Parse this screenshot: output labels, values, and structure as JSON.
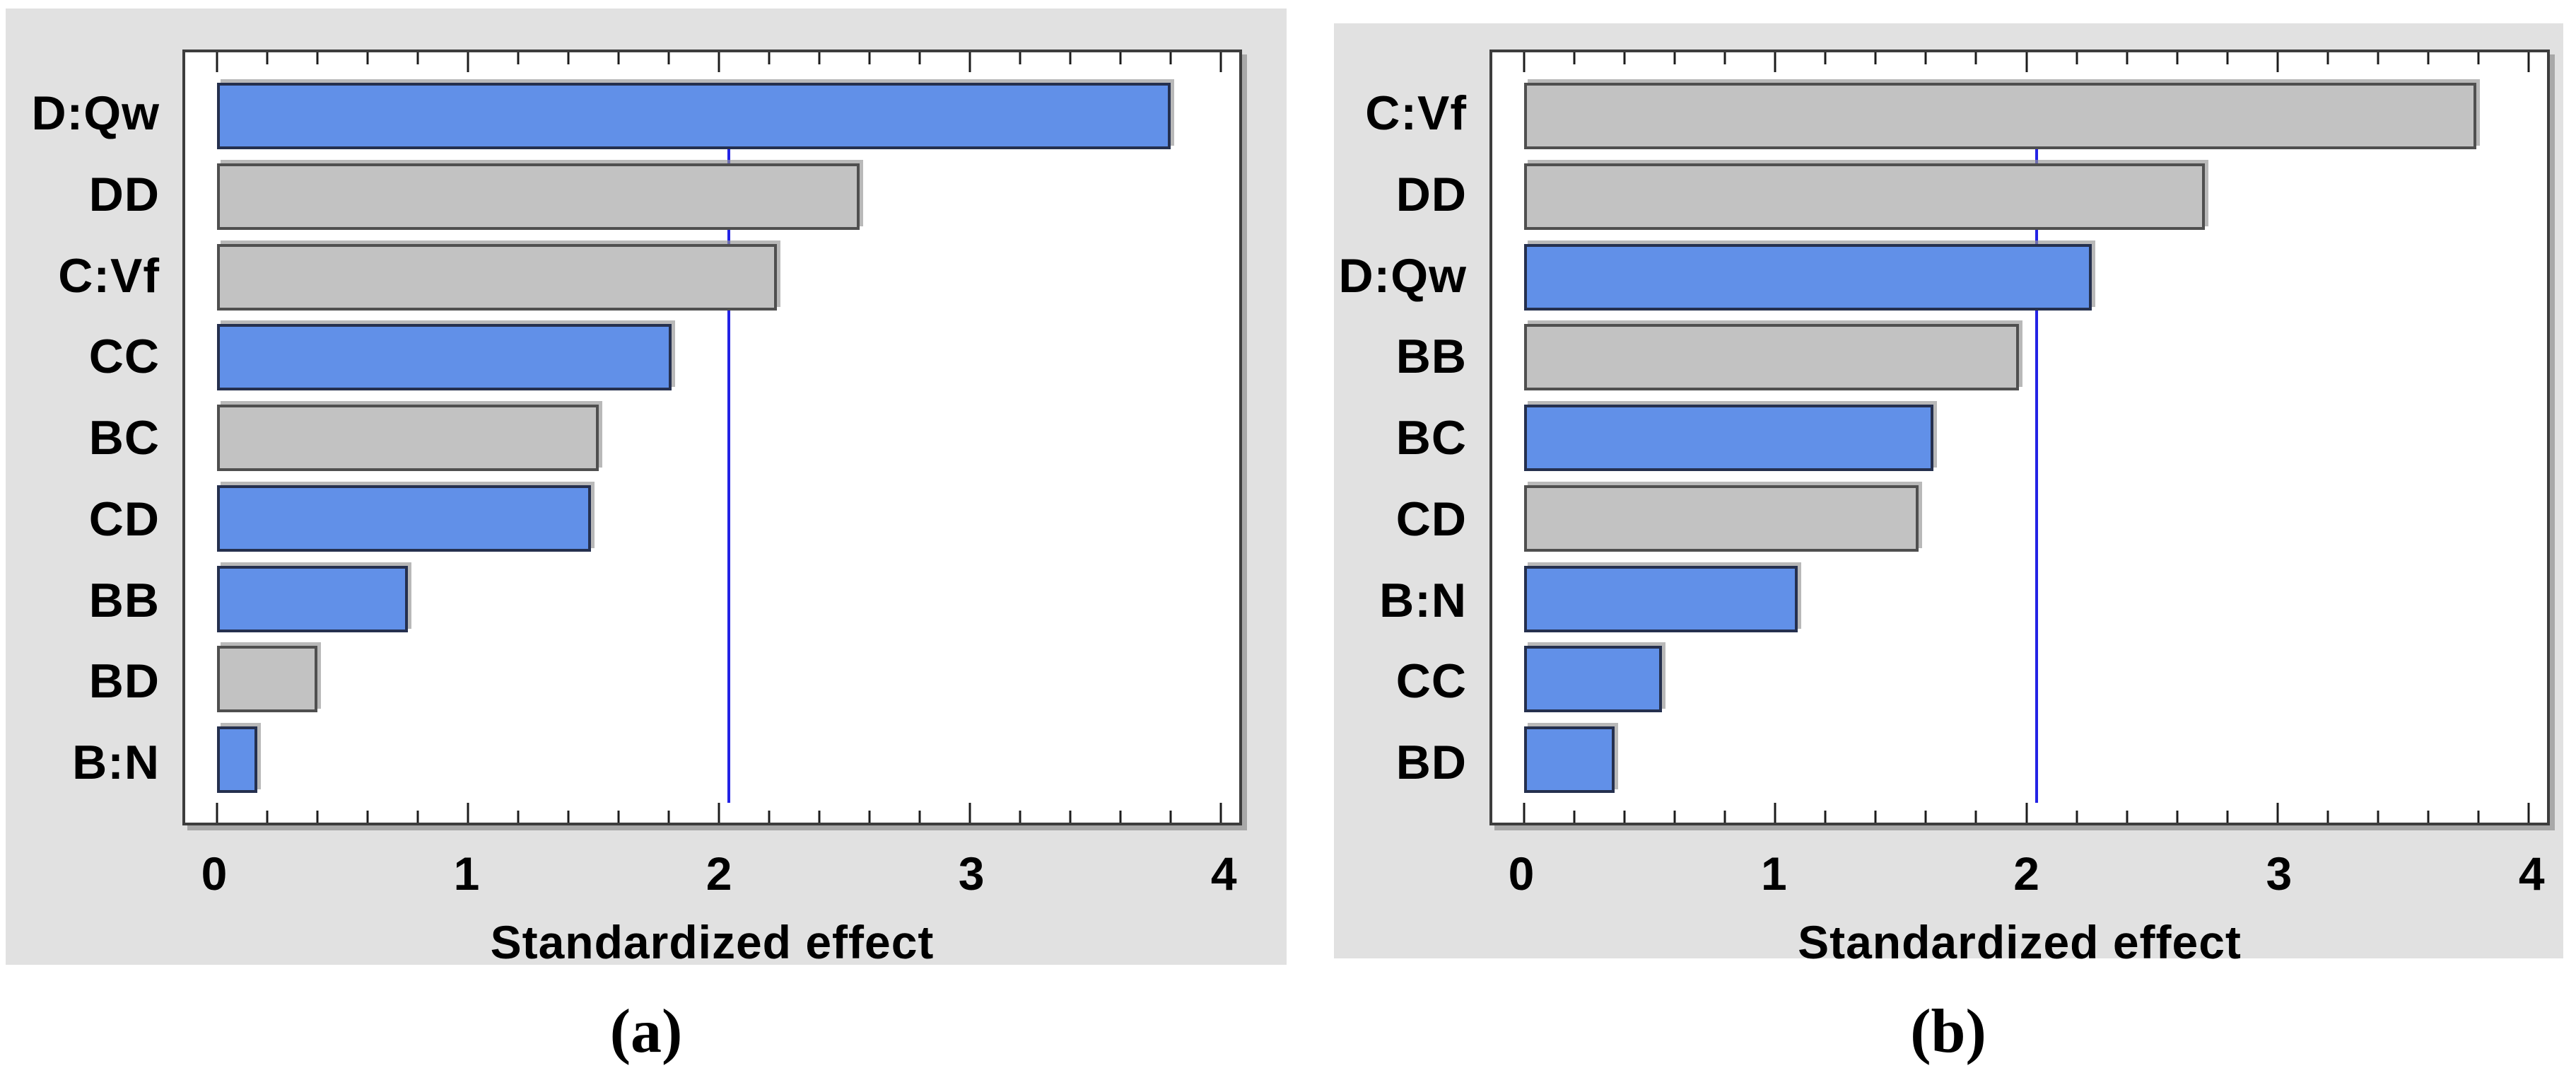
{
  "figure": {
    "type": "pareto-standardized-effects",
    "background": "#ffffff",
    "panel_background": "#E1E1E1"
  },
  "colors": {
    "bar_blue_fill": "#6190E8",
    "bar_blue_border": "#25304E",
    "bar_gray_fill": "#C2C2C2",
    "bar_gray_border": "#4F4F4F",
    "frame": "#3D3D3D",
    "shadow": "#949494",
    "reference_line": "#2323E5",
    "text": "#000000"
  },
  "chart_data": [
    {
      "panel": "a",
      "caption": "(a)",
      "type": "bar",
      "orientation": "horizontal",
      "title": "",
      "xlabel": "Standardized effect",
      "ylabel": "",
      "xlim": [
        0,
        4
      ],
      "xticks": [
        "0",
        "1",
        "2",
        "3",
        "4"
      ],
      "minor_tick_step": 0.2,
      "grid": false,
      "reference_line": 2.04,
      "categories": [
        "D:Qw",
        "DD",
        "C:Vf",
        "CC",
        "BC",
        "CD",
        "BB",
        "BD",
        "B:N"
      ],
      "values": [
        3.8,
        2.56,
        2.23,
        1.81,
        1.52,
        1.49,
        0.76,
        0.4,
        0.16
      ],
      "bar_colors": [
        "blue",
        "gray",
        "gray",
        "blue",
        "gray",
        "blue",
        "blue",
        "gray",
        "blue"
      ]
    },
    {
      "panel": "b",
      "caption": "(b)",
      "type": "bar",
      "orientation": "horizontal",
      "title": "",
      "xlabel": "Standardized effect",
      "ylabel": "",
      "xlim": [
        0,
        4
      ],
      "xticks": [
        "0",
        "1",
        "2",
        "3",
        "4"
      ],
      "minor_tick_step": 0.2,
      "grid": false,
      "reference_line": 2.04,
      "categories": [
        "C:Vf",
        "DD",
        "D:Qw",
        "BB",
        "BC",
        "CD",
        "B:N",
        "CC",
        "BD"
      ],
      "values": [
        3.79,
        2.71,
        2.26,
        1.97,
        1.63,
        1.57,
        1.09,
        0.55,
        0.36
      ],
      "bar_colors": [
        "gray",
        "gray",
        "blue",
        "gray",
        "blue",
        "gray",
        "blue",
        "blue",
        "blue"
      ]
    }
  ]
}
